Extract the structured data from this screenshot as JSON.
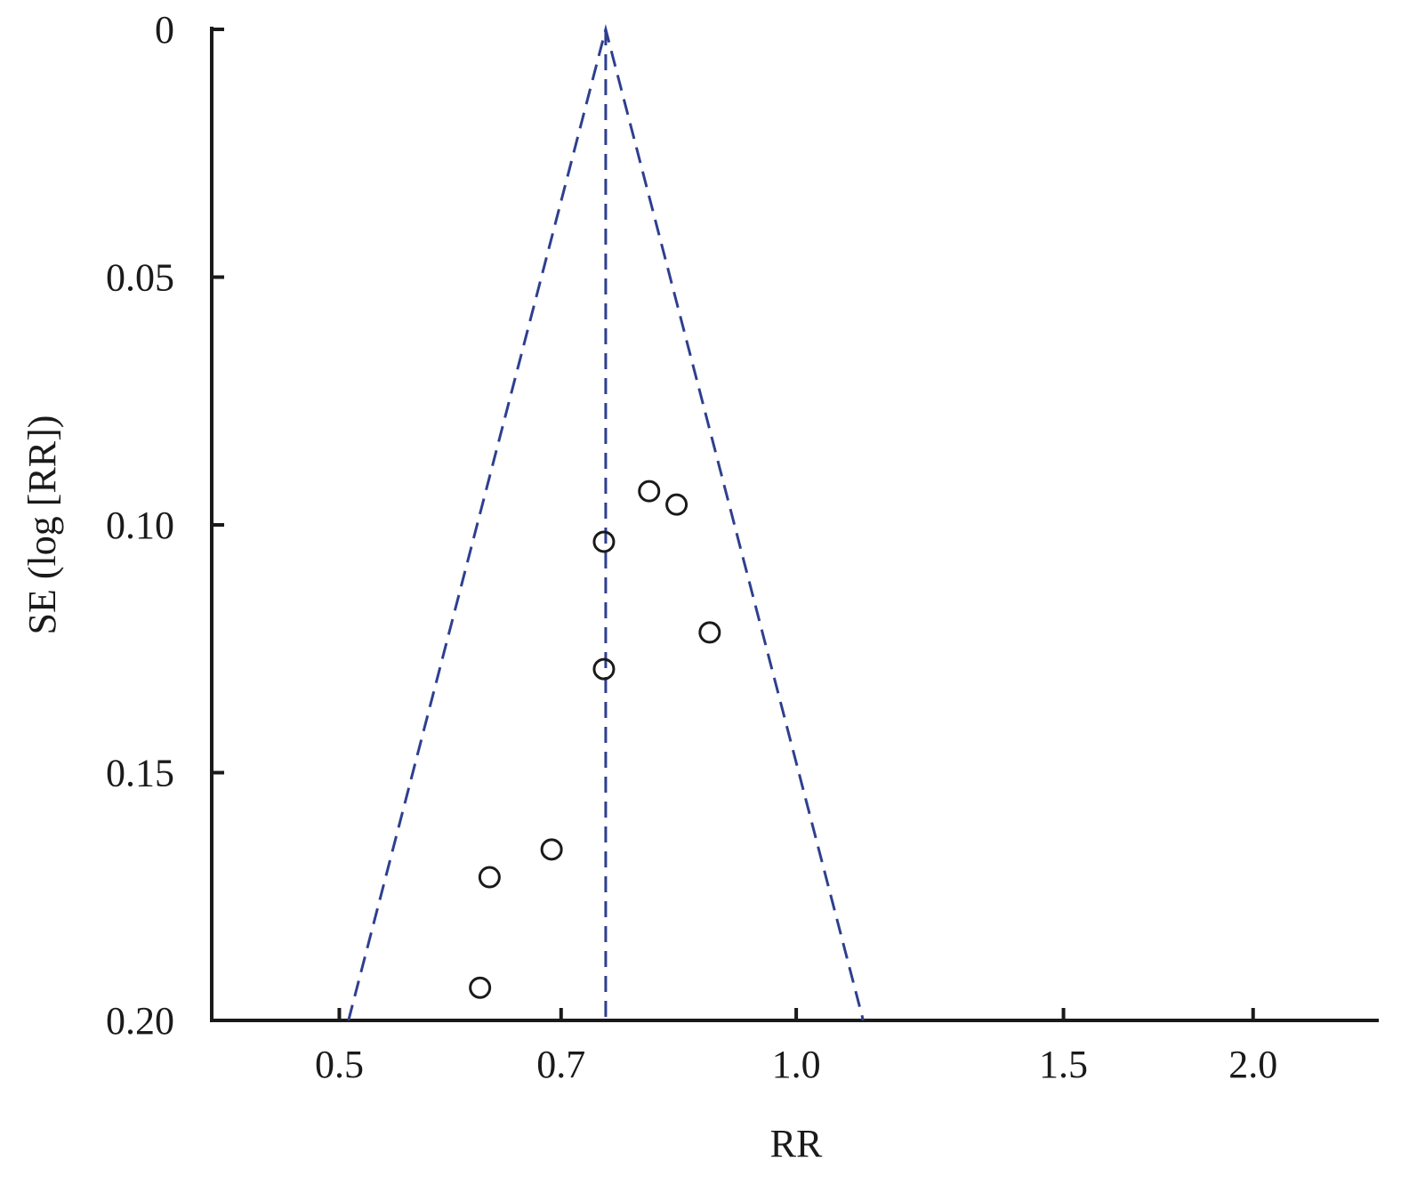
{
  "chart_data": {
    "type": "funnel",
    "x_label": "RR",
    "y_label": "SE (log [RR])",
    "x_log": true,
    "y_inverted": true,
    "xlim": [
      0.412,
      2.42
    ],
    "ylim": [
      0,
      0.2
    ],
    "xticks": [
      0.5,
      0.7,
      {
        "value": 1.0,
        "label": "1.0"
      },
      1.5,
      {
        "value": 2.0,
        "label": "2.0"
      }
    ],
    "yticks": [
      0,
      0.05,
      {
        "value": 0.1,
        "label": "0.10"
      },
      0.15,
      {
        "value": 0.2,
        "label": "0.20"
      }
    ],
    "pooled": {
      "x": [
        0.749,
        0.749
      ],
      "y": [
        0,
        0.2
      ],
      "color": "#2e3f8f"
    },
    "funnel": {
      "x": [
        0.507,
        0.749,
        1.107
      ],
      "y": [
        0.2,
        0,
        0.2
      ],
      "color": "#2e3f8f"
    },
    "points": {
      "color": "#1a1a1a",
      "x": [
        0.8,
        0.834,
        0.747,
        0.877,
        0.747,
        0.69,
        0.628,
        0.619
      ],
      "y": [
        0.0932,
        0.0959,
        0.1034,
        0.1217,
        0.1291,
        0.1655,
        0.1711,
        0.1934
      ]
    }
  }
}
